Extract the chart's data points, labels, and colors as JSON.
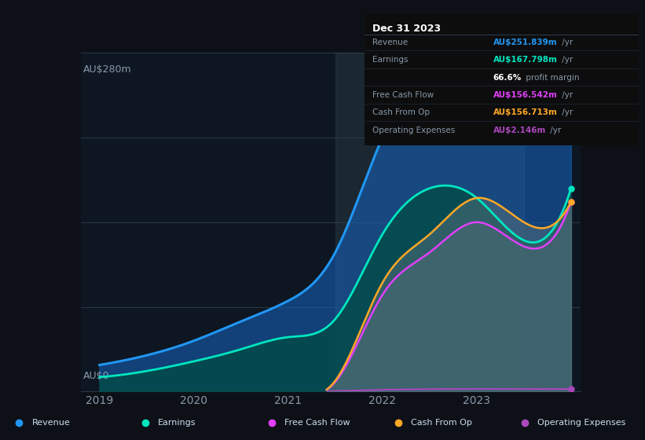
{
  "background_color": "#0d1117",
  "plot_bg_color": "#0d1621",
  "title": "Dec 31 2023",
  "ylabel_top": "AU$280m",
  "ylabel_bottom": "AU$0",
  "x_years": [
    2019,
    2019.5,
    2020,
    2020.5,
    2021,
    2021.5,
    2022,
    2022.5,
    2023,
    2023.5,
    2024
  ],
  "revenue": [
    22,
    30,
    42,
    58,
    75,
    115,
    210,
    265,
    260,
    220,
    252
  ],
  "earnings": [
    12,
    17,
    25,
    35,
    45,
    60,
    130,
    168,
    160,
    125,
    168
  ],
  "free_cash_flow": [
    0,
    0,
    0,
    0,
    0,
    8,
    80,
    115,
    140,
    120,
    157
  ],
  "cash_from_op": [
    0,
    0,
    0,
    0,
    0,
    9,
    90,
    130,
    160,
    140,
    157
  ],
  "operating_exp": [
    0,
    0,
    0,
    0,
    0,
    0.5,
    1.5,
    2.0,
    2.2,
    2.1,
    2.1
  ],
  "revenue_color": "#2196f3",
  "earnings_color": "#00e5c0",
  "free_cash_flow_color": "#e040fb",
  "cash_from_op_color": "#ffa726",
  "operating_exp_color": "#ab47bc",
  "revenue_fill": "#1565c0",
  "earnings_fill": "#004d40",
  "highlight_x_start": 2021.5,
  "highlight_x_end": 2023.5,
  "highlight_color": "#37474f",
  "ylim": [
    0,
    280
  ],
  "xlim_start": 2018.8,
  "xlim_end": 2024.1,
  "x_ticks": [
    2019,
    2020,
    2021,
    2022,
    2023
  ],
  "legend_items": [
    "Revenue",
    "Earnings",
    "Free Cash Flow",
    "Cash From Op",
    "Operating Expenses"
  ],
  "legend_colors": [
    "#2196f3",
    "#00e5c0",
    "#e040fb",
    "#ffa726",
    "#ab47bc"
  ],
  "tooltip": {
    "title": "Dec 31 2023",
    "rows": [
      {
        "label": "Revenue",
        "value": "AU$251.839m",
        "unit": "/yr",
        "color": "#2196f3"
      },
      {
        "label": "Earnings",
        "value": "AU$167.798m",
        "unit": "/yr",
        "color": "#00e5c0"
      },
      {
        "label": "margin",
        "value": "66.6%",
        "unit": " profit margin",
        "color": "#ffffff"
      },
      {
        "label": "Free Cash Flow",
        "value": "AU$156.542m",
        "unit": "/yr",
        "color": "#e040fb"
      },
      {
        "label": "Cash From Op",
        "value": "AU$156.713m",
        "unit": "/yr",
        "color": "#ffa726"
      },
      {
        "label": "Operating Expenses",
        "value": "AU$2.146m",
        "unit": "/yr",
        "color": "#ab47bc"
      }
    ]
  }
}
